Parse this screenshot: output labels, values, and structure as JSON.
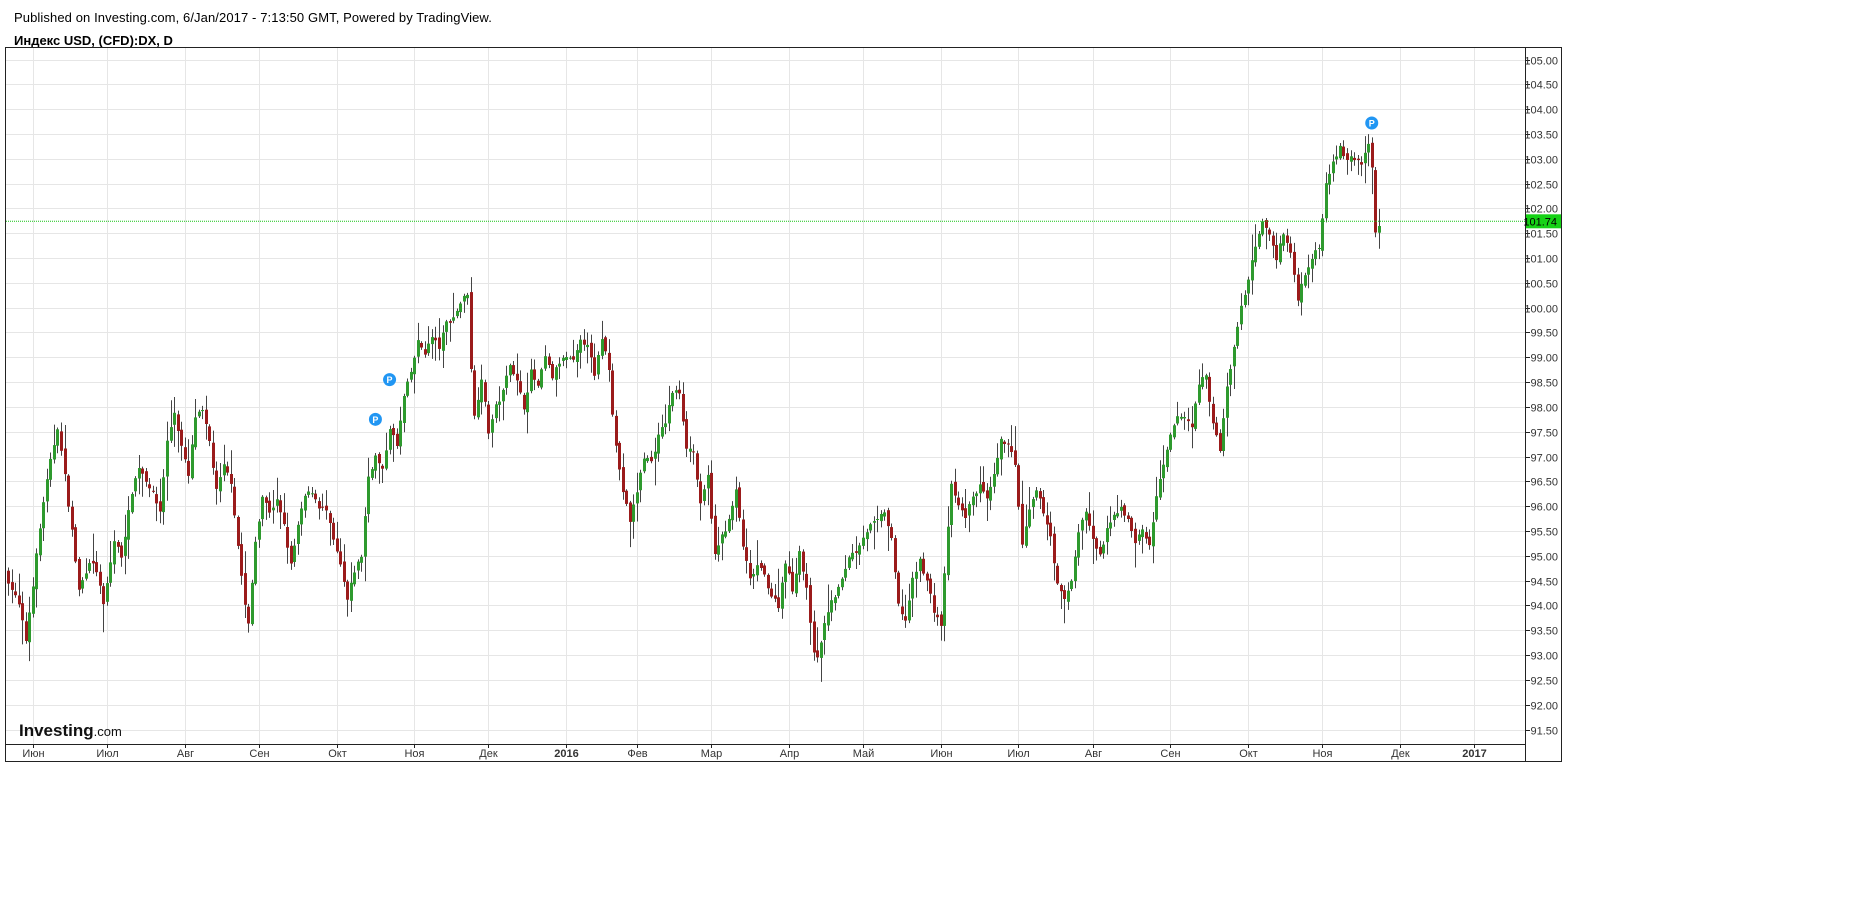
{
  "header": {
    "published": "Published on Investing.com, 6/Jan/2017 - 7:13:50 GMT, Powered by TradingView.",
    "symbol": "Индекс USD, (CFD):DX, D"
  },
  "logo": {
    "brand": "Investing",
    "suffix": ".com"
  },
  "chart_data": {
    "type": "candlestick",
    "title": "Индекс USD, (CFD):DX, D",
    "ylim": [
      91.1,
      105.25
    ],
    "y_ticks": [
      91.5,
      92.0,
      92.5,
      93.0,
      93.5,
      94.0,
      94.5,
      95.0,
      95.5,
      96.0,
      96.5,
      97.0,
      97.5,
      98.0,
      98.5,
      99.0,
      99.5,
      100.0,
      100.5,
      101.0,
      101.5,
      102.0,
      102.5,
      103.0,
      103.5,
      104.0,
      104.5,
      105.0
    ],
    "x_ticks": [
      {
        "label": "Июн",
        "bar": 7
      },
      {
        "label": "Июл",
        "bar": 28
      },
      {
        "label": "Авг",
        "bar": 50
      },
      {
        "label": "Сен",
        "bar": 71
      },
      {
        "label": "Окт",
        "bar": 93
      },
      {
        "label": "Ноя",
        "bar": 115
      },
      {
        "label": "Дек",
        "bar": 136
      },
      {
        "label": "2016",
        "bar": 158,
        "bold": true
      },
      {
        "label": "Фев",
        "bar": 178
      },
      {
        "label": "Мар",
        "bar": 199
      },
      {
        "label": "Апр",
        "bar": 221
      },
      {
        "label": "Май",
        "bar": 242
      },
      {
        "label": "Июн",
        "bar": 264
      },
      {
        "label": "Июл",
        "bar": 286
      },
      {
        "label": "Авг",
        "bar": 307
      },
      {
        "label": "Сен",
        "bar": 329
      },
      {
        "label": "Окт",
        "bar": 351
      },
      {
        "label": "Ноя",
        "bar": 372
      },
      {
        "label": "Дек",
        "bar": 394
      },
      {
        "label": "2017",
        "bar": 415,
        "bold": true
      }
    ],
    "last_price": 101.74,
    "colors": {
      "up": "#2e9a2e",
      "down": "#9b1b1b",
      "wick": "#444444",
      "last_line": "#16c416",
      "last_badge": "#16d216",
      "marker": "#2196f3",
      "grid": "#e6e6e6"
    },
    "path": [
      [
        0,
        94.5
      ],
      [
        3,
        94.0
      ],
      [
        5,
        93.3
      ],
      [
        8,
        95.0
      ],
      [
        10,
        96.1
      ],
      [
        12,
        96.9
      ],
      [
        14,
        97.6
      ],
      [
        16,
        96.6
      ],
      [
        18,
        95.5
      ],
      [
        20,
        94.3
      ],
      [
        23,
        94.9
      ],
      [
        25,
        94.7
      ],
      [
        27,
        94.0
      ],
      [
        30,
        95.3
      ],
      [
        32,
        95.0
      ],
      [
        35,
        96.3
      ],
      [
        37,
        96.8
      ],
      [
        40,
        96.4
      ],
      [
        43,
        95.9
      ],
      [
        45,
        97.3
      ],
      [
        47,
        97.9
      ],
      [
        49,
        97.2
      ],
      [
        51,
        96.6
      ],
      [
        53,
        97.8
      ],
      [
        55,
        97.9
      ],
      [
        57,
        97.3
      ],
      [
        59,
        96.3
      ],
      [
        61,
        96.8
      ],
      [
        63,
        96.5
      ],
      [
        65,
        95.2
      ],
      [
        67,
        94.0
      ],
      [
        68,
        93.6
      ],
      [
        70,
        95.3
      ],
      [
        72,
        96.2
      ],
      [
        74,
        95.9
      ],
      [
        76,
        96.1
      ],
      [
        78,
        95.6
      ],
      [
        80,
        94.8
      ],
      [
        82,
        95.6
      ],
      [
        84,
        96.2
      ],
      [
        86,
        96.3
      ],
      [
        88,
        96.0
      ],
      [
        90,
        95.9
      ],
      [
        92,
        95.3
      ],
      [
        94,
        94.8
      ],
      [
        96,
        94.1
      ],
      [
        98,
        94.7
      ],
      [
        100,
        95.0
      ],
      [
        102,
        96.6
      ],
      [
        104,
        97.0
      ],
      [
        106,
        96.7
      ],
      [
        108,
        97.6
      ],
      [
        110,
        97.2
      ],
      [
        112,
        98.2
      ],
      [
        114,
        98.7
      ],
      [
        116,
        99.3
      ],
      [
        118,
        99.1
      ],
      [
        120,
        99.4
      ],
      [
        122,
        99.2
      ],
      [
        124,
        99.7
      ],
      [
        126,
        99.8
      ],
      [
        128,
        100.1
      ],
      [
        130,
        100.3
      ],
      [
        131,
        98.8
      ],
      [
        132,
        97.8
      ],
      [
        134,
        98.6
      ],
      [
        136,
        97.5
      ],
      [
        138,
        98.0
      ],
      [
        140,
        98.3
      ],
      [
        142,
        98.9
      ],
      [
        144,
        98.5
      ],
      [
        146,
        98.0
      ],
      [
        148,
        98.7
      ],
      [
        150,
        98.4
      ],
      [
        152,
        99.0
      ],
      [
        154,
        98.6
      ],
      [
        156,
        98.9
      ],
      [
        158,
        99.0
      ],
      [
        160,
        98.9
      ],
      [
        162,
        99.3
      ],
      [
        164,
        99.3
      ],
      [
        166,
        98.6
      ],
      [
        168,
        99.4
      ],
      [
        170,
        98.8
      ],
      [
        171,
        97.9
      ],
      [
        172,
        97.2
      ],
      [
        174,
        96.3
      ],
      [
        176,
        95.7
      ],
      [
        178,
        96.3
      ],
      [
        180,
        97.0
      ],
      [
        182,
        96.9
      ],
      [
        184,
        97.4
      ],
      [
        186,
        97.7
      ],
      [
        188,
        98.3
      ],
      [
        190,
        98.3
      ],
      [
        192,
        97.2
      ],
      [
        194,
        97.1
      ],
      [
        196,
        96.0
      ],
      [
        198,
        96.6
      ],
      [
        200,
        95.0
      ],
      [
        202,
        95.4
      ],
      [
        204,
        95.7
      ],
      [
        206,
        96.3
      ],
      [
        208,
        95.2
      ],
      [
        210,
        94.5
      ],
      [
        212,
        94.8
      ],
      [
        214,
        94.6
      ],
      [
        216,
        94.2
      ],
      [
        218,
        94.0
      ],
      [
        220,
        94.9
      ],
      [
        222,
        94.3
      ],
      [
        224,
        95.1
      ],
      [
        226,
        94.3
      ],
      [
        228,
        93.1
      ],
      [
        229,
        92.9
      ],
      [
        230,
        93.3
      ],
      [
        232,
        93.9
      ],
      [
        234,
        94.2
      ],
      [
        236,
        94.5
      ],
      [
        238,
        95.0
      ],
      [
        240,
        95.1
      ],
      [
        242,
        95.4
      ],
      [
        244,
        95.6
      ],
      [
        246,
        95.7
      ],
      [
        248,
        95.9
      ],
      [
        250,
        95.3
      ],
      [
        252,
        94.0
      ],
      [
        254,
        93.7
      ],
      [
        256,
        94.5
      ],
      [
        258,
        94.9
      ],
      [
        260,
        94.5
      ],
      [
        262,
        93.9
      ],
      [
        264,
        93.6
      ],
      [
        266,
        95.6
      ],
      [
        267,
        96.4
      ],
      [
        269,
        96.0
      ],
      [
        271,
        95.8
      ],
      [
        273,
        96.2
      ],
      [
        275,
        96.4
      ],
      [
        277,
        96.1
      ],
      [
        279,
        96.6
      ],
      [
        281,
        97.3
      ],
      [
        283,
        97.3
      ],
      [
        285,
        96.8
      ],
      [
        287,
        95.2
      ],
      [
        289,
        95.9
      ],
      [
        291,
        96.3
      ],
      [
        293,
        95.9
      ],
      [
        295,
        95.4
      ],
      [
        297,
        94.4
      ],
      [
        299,
        94.1
      ],
      [
        301,
        94.5
      ],
      [
        303,
        95.5
      ],
      [
        305,
        95.9
      ],
      [
        307,
        95.3
      ],
      [
        309,
        95.0
      ],
      [
        311,
        95.5
      ],
      [
        313,
        95.8
      ],
      [
        315,
        96.0
      ],
      [
        317,
        95.7
      ],
      [
        319,
        95.3
      ],
      [
        321,
        95.5
      ],
      [
        323,
        95.2
      ],
      [
        325,
        96.2
      ],
      [
        327,
        96.8
      ],
      [
        329,
        97.4
      ],
      [
        331,
        97.8
      ],
      [
        333,
        97.8
      ],
      [
        335,
        97.6
      ],
      [
        337,
        98.5
      ],
      [
        339,
        98.6
      ],
      [
        341,
        97.7
      ],
      [
        343,
        97.1
      ],
      [
        345,
        98.4
      ],
      [
        347,
        99.2
      ],
      [
        349,
        100.0
      ],
      [
        351,
        100.6
      ],
      [
        353,
        101.2
      ],
      [
        355,
        101.7
      ],
      [
        357,
        101.5
      ],
      [
        359,
        101.0
      ],
      [
        361,
        101.5
      ],
      [
        363,
        101.1
      ],
      [
        365,
        100.2
      ],
      [
        367,
        100.7
      ],
      [
        369,
        101.0
      ],
      [
        371,
        101.2
      ],
      [
        373,
        102.5
      ],
      [
        375,
        103.0
      ],
      [
        377,
        103.2
      ],
      [
        379,
        103.0
      ],
      [
        381,
        103.0
      ],
      [
        383,
        102.9
      ],
      [
        385,
        103.3
      ],
      [
        386,
        102.8
      ],
      [
        387,
        101.5
      ],
      [
        388,
        101.7
      ]
    ],
    "markers": [
      {
        "bar": 104,
        "value": 97.75,
        "label": "P"
      },
      {
        "bar": 108,
        "value": 98.55,
        "label": "P"
      },
      {
        "bar": 386,
        "value": 103.72,
        "label": "P"
      }
    ]
  }
}
